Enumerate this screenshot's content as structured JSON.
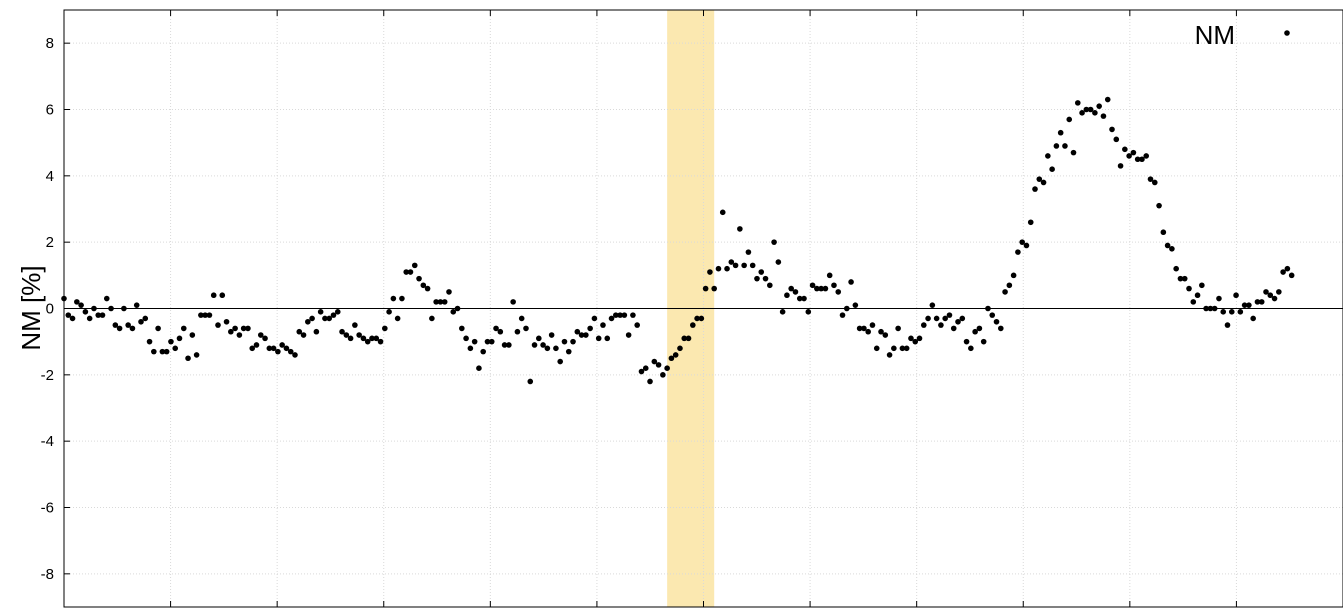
{
  "chart_data": {
    "type": "scatter",
    "title": "",
    "xlabel": "",
    "ylabel": "NM [%]",
    "ylim": [
      -9,
      9
    ],
    "xlim": [
      0,
      299
    ],
    "yticks": [
      "8",
      "6",
      "4",
      "2",
      "0",
      "-2",
      "-4",
      "-6",
      "-8"
    ],
    "grid": true,
    "legend": {
      "position": "top-right",
      "entries": [
        "NM"
      ]
    },
    "highlight_band": {
      "x_start": 141,
      "x_end": 152,
      "color": "#fbe8b0"
    },
    "zero_line": true,
    "series": [
      {
        "name": "NM",
        "color": "#000000",
        "values": [
          0.3,
          -0.2,
          -0.3,
          0.2,
          0.1,
          -0.1,
          -0.3,
          0.0,
          -0.2,
          -0.2,
          0.3,
          0.0,
          -0.5,
          -0.6,
          0.0,
          -0.5,
          -0.6,
          0.1,
          -0.4,
          -0.3,
          -1.0,
          -1.3,
          -0.6,
          -1.3,
          -1.3,
          -1.0,
          -1.2,
          -0.9,
          -0.6,
          -1.5,
          -0.8,
          -1.4,
          -0.2,
          -0.2,
          -0.2,
          0.4,
          -0.5,
          0.4,
          -0.4,
          -0.7,
          -0.6,
          -0.8,
          -0.6,
          -0.6,
          -1.2,
          -1.1,
          -0.8,
          -0.9,
          -1.2,
          -1.2,
          -1.3,
          -1.1,
          -1.2,
          -1.3,
          -1.4,
          -0.7,
          -0.8,
          -0.4,
          -0.3,
          -0.7,
          -0.1,
          -0.3,
          -0.3,
          -0.2,
          -0.1,
          -0.7,
          -0.8,
          -0.9,
          -0.5,
          -0.8,
          -0.9,
          -1.0,
          -0.9,
          -0.9,
          -1.0,
          -0.6,
          -0.1,
          0.3,
          -0.3,
          0.3,
          1.1,
          1.1,
          1.3,
          0.9,
          0.7,
          0.6,
          -0.3,
          0.2,
          0.2,
          0.2,
          0.5,
          -0.1,
          0.0,
          -0.6,
          -0.9,
          -1.2,
          -1.0,
          -1.8,
          -1.3,
          -1.0,
          -1.0,
          -0.6,
          -0.7,
          -1.1,
          -1.1,
          0.2,
          -0.7,
          -0.3,
          -0.6,
          -2.2,
          -1.1,
          -0.9,
          -1.1,
          -1.2,
          -0.8,
          -1.2,
          -1.6,
          -1.0,
          -1.3,
          -1.0,
          -0.7,
          -0.8,
          -0.8,
          -0.6,
          -0.3,
          -0.9,
          -0.5,
          -0.9,
          -0.3,
          -0.2,
          -0.2,
          -0.2,
          -0.8,
          -0.2,
          -0.5,
          -1.9,
          -1.8,
          -2.2,
          -1.6,
          -1.7,
          -2.0,
          -1.8,
          -1.5,
          -1.4,
          -1.2,
          -0.9,
          -0.9,
          -0.5,
          -0.3,
          -0.3,
          0.6,
          1.1,
          0.6,
          1.2,
          2.9,
          1.2,
          1.4,
          1.3,
          2.4,
          1.3,
          1.7,
          1.3,
          0.9,
          1.1,
          0.9,
          0.7,
          2.0,
          1.4,
          -0.1,
          0.4,
          0.6,
          0.5,
          0.3,
          0.3,
          -0.1,
          0.7,
          0.6,
          0.6,
          0.6,
          1.0,
          0.7,
          0.5,
          -0.2,
          0.0,
          0.8,
          0.1,
          -0.6,
          -0.6,
          -0.7,
          -0.5,
          -1.2,
          -0.7,
          -0.8,
          -1.4,
          -1.2,
          -0.6,
          -1.2,
          -1.2,
          -0.9,
          -1.0,
          -0.9,
          -0.5,
          -0.3,
          0.1,
          -0.3,
          -0.5,
          -0.3,
          -0.2,
          -0.6,
          -0.4,
          -0.3,
          -1.0,
          -1.2,
          -0.7,
          -0.6,
          -1.0,
          0.0,
          -0.2,
          -0.4,
          -0.6,
          0.5,
          0.7,
          1.0,
          1.7,
          2.0,
          1.9,
          2.6,
          3.6,
          3.9,
          3.8,
          4.6,
          4.2,
          4.9,
          5.3,
          4.9,
          5.7,
          4.7,
          6.2,
          5.9,
          6.0,
          6.0,
          5.9,
          6.1,
          5.8,
          6.3,
          5.4,
          5.1,
          4.3,
          4.8,
          4.6,
          4.7,
          4.5,
          4.5,
          4.6,
          3.9,
          3.8,
          3.1,
          2.3,
          1.9,
          1.8,
          1.2,
          0.9,
          0.9,
          0.6,
          0.2,
          0.4,
          0.7,
          0.0,
          0.0,
          0.0,
          0.3,
          -0.1,
          -0.5,
          -0.1,
          0.4,
          -0.1,
          0.1,
          0.1,
          -0.3,
          0.2,
          0.2,
          0.5,
          0.4,
          0.3,
          0.5,
          1.1,
          1.2,
          1.0
        ]
      }
    ]
  }
}
